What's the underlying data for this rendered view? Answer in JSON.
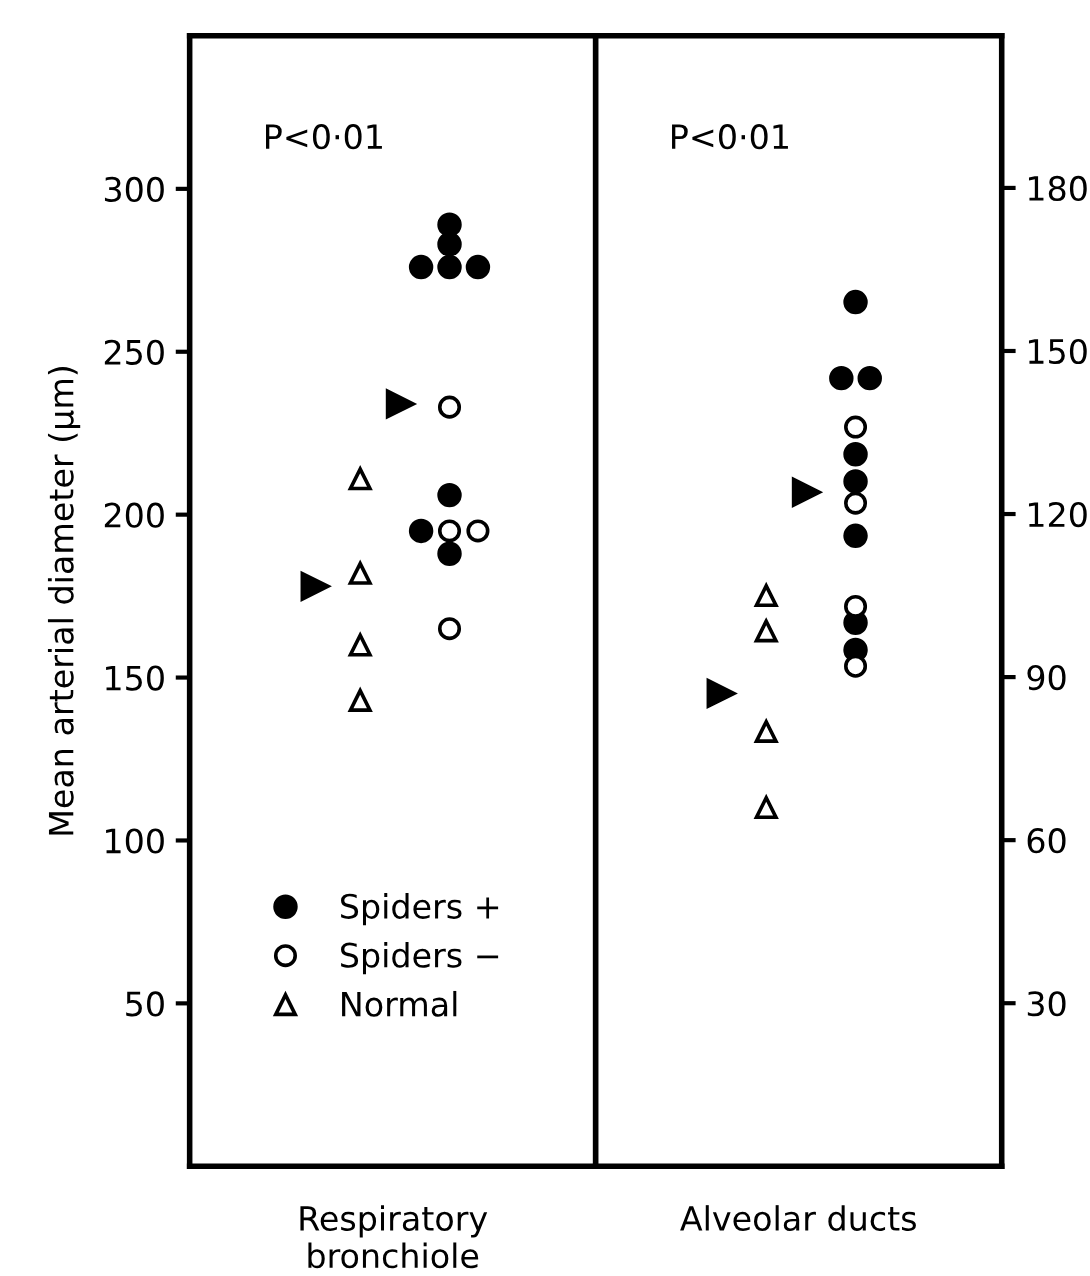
{
  "chart_data": [
    {
      "type": "scatter",
      "categories": [
        "Respiratory\nbronchiole"
      ],
      "ylabel": "Mean arterial diameter (μm)",
      "ylim": [
        0,
        347
      ],
      "yticks": [
        50,
        100,
        150,
        200,
        250,
        300
      ],
      "legend": "bottom left",
      "annotations": [
        "P<0·01"
      ],
      "series": [
        {
          "name": "Spiders +",
          "color": "#000000",
          "marker": "circle",
          "x": [
            "Respiratory\nbronchiole",
            "Respiratory\nbronchiole",
            "Respiratory\nbronchiole",
            "Respiratory\nbronchiole",
            "Respiratory\nbronchiole",
            "Respiratory\nbronchiole",
            "Respiratory\nbronchiole",
            "Respiratory\nbronchiole"
          ],
          "values": [
            289,
            283,
            276,
            276,
            276,
            206,
            195,
            188
          ]
        },
        {
          "name": "Spiders −",
          "color": "#000000",
          "marker": "circle_open",
          "x": [
            "Respiratory\nbronchiole",
            "Respiratory\nbronchiole",
            "Respiratory\nbronchiole",
            "Respiratory\nbronchiole"
          ],
          "values": [
            233,
            195,
            195,
            165
          ]
        },
        {
          "name": "Normal",
          "color": "#000000",
          "marker": "triangle_open",
          "x": [
            "Respiratory\nbronchiole",
            "Respiratory\nbronchiole",
            "Respiratory\nbronchiole",
            "Respiratory\nbronchiole"
          ],
          "values": [
            211,
            182,
            160,
            143
          ]
        },
        {
          "color": "#000000",
          "marker": "triangle",
          "x": [
            "Respiratory\nbronchiole",
            "Respiratory\nbronchiole"
          ],
          "values": [
            178,
            234
          ]
        }
      ]
    },
    {
      "type": "scatter",
      "categories": [
        "Alveolar ducts"
      ],
      "ylim": [
        0,
        208
      ],
      "yticks": [
        30,
        60,
        90,
        120,
        150,
        180
      ],
      "legend": false,
      "annotations": [
        "P<0·01"
      ],
      "series": [
        {
          "color": "#000000",
          "marker": "circle",
          "x": [
            "Alveolar ducts",
            "Alveolar ducts",
            "Alveolar ducts",
            "Alveolar ducts",
            "Alveolar ducts",
            "Alveolar ducts",
            "Alveolar ducts",
            "Alveolar ducts"
          ],
          "values": [
            159,
            145,
            145,
            131,
            126,
            116,
            100,
            95
          ]
        },
        {
          "color": "#000000",
          "marker": "circle_open",
          "x": [
            "Alveolar ducts",
            "Alveolar ducts",
            "Alveolar ducts",
            "Alveolar ducts"
          ],
          "values": [
            136,
            122,
            103,
            92
          ]
        },
        {
          "color": "#000000",
          "marker": "triangle_open",
          "x": [
            "Alveolar ducts",
            "Alveolar ducts",
            "Alveolar ducts",
            "Alveolar ducts"
          ],
          "values": [
            105,
            98.5,
            80,
            66
          ]
        },
        {
          "color": "#000000",
          "marker": "triangle",
          "x": [
            "Alveolar ducts",
            "Alveolar ducts"
          ],
          "values": [
            87,
            124
          ]
        }
      ]
    }
  ]
}
